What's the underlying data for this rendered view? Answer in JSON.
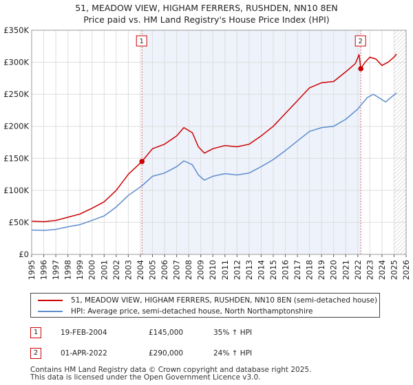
{
  "chart_data": {
    "type": "line",
    "title": "51, MEADOW VIEW, HIGHAM FERRERS, RUSHDEN, NN10 8EN",
    "subtitle": "Price paid vs. HM Land Registry's House Price Index (HPI)",
    "xlim": [
      1995,
      2026
    ],
    "ylim": [
      0,
      350000
    ],
    "x_ticks": [
      "1995",
      "1996",
      "1997",
      "1998",
      "1999",
      "2000",
      "2001",
      "2002",
      "2003",
      "2004",
      "2005",
      "2006",
      "2007",
      "2008",
      "2009",
      "2010",
      "2011",
      "2012",
      "2013",
      "2014",
      "2015",
      "2016",
      "2017",
      "2018",
      "2019",
      "2020",
      "2021",
      "2022",
      "2023",
      "2024",
      "2025",
      "2026"
    ],
    "y_ticks": [
      {
        "value": 0,
        "label": "£0"
      },
      {
        "value": 50000,
        "label": "£50K"
      },
      {
        "value": 100000,
        "label": "£100K"
      },
      {
        "value": 150000,
        "label": "£150K"
      },
      {
        "value": 200000,
        "label": "£200K"
      },
      {
        "value": 250000,
        "label": "£250K"
      },
      {
        "value": 300000,
        "label": "£300K"
      },
      {
        "value": 350000,
        "label": "£350K"
      }
    ],
    "shaded_range": [
      2004.13,
      2022.25
    ],
    "forecast_start": 2025.0,
    "series": [
      {
        "name": "51, MEADOW VIEW, HIGHAM FERRERS, RUSHDEN, NN10 8EN (semi-detached house)",
        "color": "#cc0000",
        "points": [
          [
            1995.0,
            52000
          ],
          [
            1996.0,
            51000
          ],
          [
            1997.0,
            53000
          ],
          [
            1998.0,
            58000
          ],
          [
            1999.0,
            63000
          ],
          [
            2000.0,
            72000
          ],
          [
            2001.0,
            82000
          ],
          [
            2002.0,
            100000
          ],
          [
            2003.0,
            125000
          ],
          [
            2004.13,
            145000
          ],
          [
            2005.0,
            165000
          ],
          [
            2006.0,
            172000
          ],
          [
            2007.0,
            185000
          ],
          [
            2007.6,
            198000
          ],
          [
            2008.3,
            190000
          ],
          [
            2008.8,
            168000
          ],
          [
            2009.3,
            158000
          ],
          [
            2010.0,
            165000
          ],
          [
            2011.0,
            170000
          ],
          [
            2012.0,
            168000
          ],
          [
            2013.0,
            172000
          ],
          [
            2014.0,
            185000
          ],
          [
            2015.0,
            200000
          ],
          [
            2016.0,
            220000
          ],
          [
            2017.0,
            240000
          ],
          [
            2018.0,
            260000
          ],
          [
            2019.0,
            268000
          ],
          [
            2020.0,
            270000
          ],
          [
            2021.0,
            285000
          ],
          [
            2021.8,
            298000
          ],
          [
            2022.1,
            312000
          ],
          [
            2022.25,
            290000
          ],
          [
            2022.6,
            300000
          ],
          [
            2023.0,
            308000
          ],
          [
            2023.5,
            305000
          ],
          [
            2024.0,
            295000
          ],
          [
            2024.5,
            300000
          ],
          [
            2025.0,
            308000
          ],
          [
            2025.2,
            313000
          ]
        ]
      },
      {
        "name": "HPI: Average price, semi-detached house, North Northamptonshire",
        "color": "#5b8ccc",
        "points": [
          [
            1995.0,
            38000
          ],
          [
            1996.0,
            37500
          ],
          [
            1997.0,
            39000
          ],
          [
            1998.0,
            43000
          ],
          [
            1999.0,
            46500
          ],
          [
            2000.0,
            53000
          ],
          [
            2001.0,
            60000
          ],
          [
            2002.0,
            74000
          ],
          [
            2003.0,
            92000
          ],
          [
            2004.13,
            107000
          ],
          [
            2005.0,
            122000
          ],
          [
            2006.0,
            127000
          ],
          [
            2007.0,
            137000
          ],
          [
            2007.6,
            146000
          ],
          [
            2008.3,
            140000
          ],
          [
            2008.8,
            124000
          ],
          [
            2009.3,
            116000
          ],
          [
            2010.0,
            122000
          ],
          [
            2011.0,
            126000
          ],
          [
            2012.0,
            124000
          ],
          [
            2013.0,
            127000
          ],
          [
            2014.0,
            137000
          ],
          [
            2015.0,
            148000
          ],
          [
            2016.0,
            162000
          ],
          [
            2017.0,
            177000
          ],
          [
            2018.0,
            192000
          ],
          [
            2019.0,
            198000
          ],
          [
            2020.0,
            200000
          ],
          [
            2021.0,
            211000
          ],
          [
            2022.0,
            227000
          ],
          [
            2022.25,
            233000
          ],
          [
            2022.8,
            245000
          ],
          [
            2023.3,
            250000
          ],
          [
            2023.8,
            244000
          ],
          [
            2024.3,
            238000
          ],
          [
            2024.8,
            246000
          ],
          [
            2025.2,
            252000
          ]
        ]
      }
    ],
    "sales": [
      {
        "id": "1",
        "x": 2004.13,
        "y": 145000
      },
      {
        "id": "2",
        "x": 2022.25,
        "y": 290000
      }
    ]
  },
  "legend": {
    "property_label": "51, MEADOW VIEW, HIGHAM FERRERS, RUSHDEN, NN10 8EN (semi-detached house)",
    "hpi_label": "HPI: Average price, semi-detached house, North Northamptonshire"
  },
  "sales_table": [
    {
      "id": "1",
      "date": "19-FEB-2004",
      "price": "£145,000",
      "hpi": "35% ↑ HPI"
    },
    {
      "id": "2",
      "date": "01-APR-2022",
      "price": "£290,000",
      "hpi": "24% ↑ HPI"
    }
  ],
  "footer": {
    "line1": "Contains HM Land Registry data © Crown copyright and database right 2025.",
    "line2": "This data is licensed under the Open Government Licence v3.0."
  }
}
